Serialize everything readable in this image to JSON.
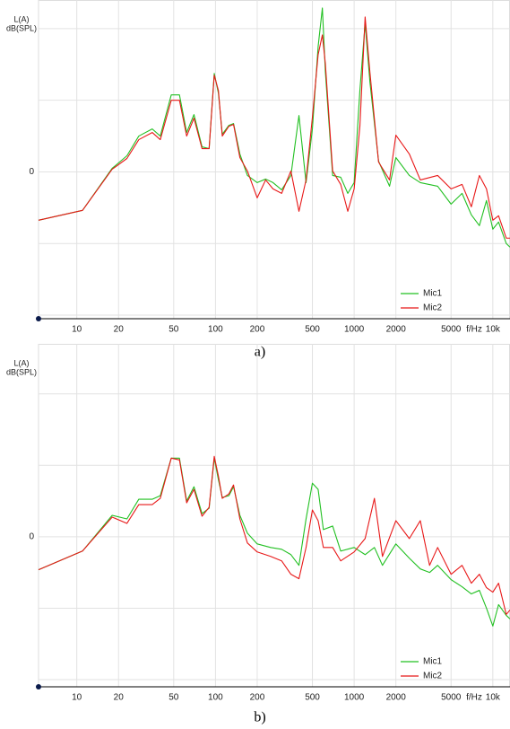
{
  "chart_data": [
    {
      "type": "line",
      "caption": "a)",
      "ylabel": [
        "L(A)",
        "dB(SPL)"
      ],
      "xlabel": "f/Hz",
      "xscale": "log",
      "grid": true,
      "legend": "lower right",
      "xlim": [
        5.3,
        13300
      ],
      "ylim": [
        -41,
        48
      ],
      "xticks": [
        10,
        20,
        50,
        100,
        200,
        500,
        1000,
        2000,
        5000,
        {
          "value": 10000,
          "label": "10k"
        }
      ],
      "yticks": [
        {
          "value": -40,
          "label": null
        },
        {
          "value": -20,
          "label": null
        },
        0,
        {
          "value": 20,
          "label": null
        },
        {
          "value": 40,
          "label": null
        }
      ],
      "x": [
        5.3,
        11,
        18,
        23,
        28,
        35,
        40,
        48,
        55,
        62,
        70,
        80,
        90,
        98,
        105,
        112,
        125,
        135,
        150,
        170,
        200,
        230,
        260,
        300,
        350,
        400,
        450,
        500,
        550,
        590,
        620,
        700,
        800,
        900,
        1000,
        1100,
        1200,
        1300,
        1500,
        1800,
        2000,
        2500,
        3000,
        4000,
        5000,
        6000,
        7000,
        8000,
        9000,
        10000,
        11000,
        12500,
        13300
      ],
      "series": [
        {
          "name": "Mic1",
          "color": "#22c022",
          "values": [
            -13.5,
            -10.75,
            1,
            4.5,
            10,
            12,
            10,
            21.5,
            21.5,
            11,
            16,
            7,
            6.5,
            27.5,
            22,
            10.5,
            13,
            13.5,
            5,
            -1,
            -3,
            -2,
            -3,
            -5,
            -1,
            15.75,
            -3,
            12,
            35,
            45.75,
            28,
            -1,
            -1.5,
            -6,
            -3,
            22.75,
            41.5,
            25,
            3,
            -4,
            4,
            -1,
            -3,
            -4,
            -9,
            -6,
            -12,
            -15,
            -8,
            -16,
            -14,
            -20,
            -21
          ]
        },
        {
          "name": "Mic2",
          "color": "#e81818",
          "values": [
            -13.5,
            -10.75,
            0.75,
            3.75,
            9,
            11,
            9,
            20,
            20,
            10,
            15,
            6.5,
            6.5,
            27,
            22.75,
            10,
            12.75,
            13.25,
            4,
            0.25,
            -7.25,
            -2.25,
            -4.75,
            -6,
            0.25,
            -11,
            -2.25,
            15.25,
            32.75,
            38.25,
            30.25,
            0.25,
            -3.5,
            -11,
            -4.75,
            12.75,
            43.25,
            27.75,
            2.75,
            -2.25,
            10.25,
            5,
            -2.25,
            -1,
            -4.75,
            -3.5,
            -9.75,
            -1,
            -4.75,
            -13.5,
            -12.25,
            -18.5,
            -18.5
          ]
        }
      ]
    },
    {
      "type": "line",
      "caption": "b)",
      "ylabel": [
        "L(A)",
        "dB(SPL)"
      ],
      "xlabel": "f/Hz",
      "xscale": "log",
      "grid": true,
      "legend": "lower right",
      "xlim": [
        5.3,
        13300
      ],
      "ylim": [
        -42,
        54
      ],
      "xticks": [
        10,
        20,
        50,
        100,
        200,
        500,
        1000,
        2000,
        5000,
        {
          "value": 10000,
          "label": "10k"
        }
      ],
      "yticks": [
        {
          "value": -40,
          "label": null
        },
        {
          "value": -20,
          "label": null
        },
        0,
        {
          "value": 20,
          "label": null
        },
        {
          "value": 40,
          "label": null
        }
      ],
      "x": [
        5.3,
        11,
        18,
        23,
        28,
        35,
        40,
        48,
        55,
        62,
        70,
        80,
        90,
        98,
        105,
        112,
        125,
        135,
        150,
        170,
        200,
        250,
        300,
        350,
        400,
        450,
        500,
        550,
        600,
        700,
        800,
        1000,
        1200,
        1400,
        1600,
        2000,
        2500,
        3000,
        3500,
        4000,
        5000,
        6000,
        7000,
        8000,
        9000,
        10000,
        11000,
        12500,
        13300
      ],
      "series": [
        {
          "name": "Mic1",
          "color": "#22c022",
          "values": [
            -9.25,
            -4,
            6,
            5,
            10.5,
            10.5,
            11.5,
            22,
            22,
            10,
            14,
            6.5,
            8,
            22,
            16,
            11,
            11.5,
            14,
            6,
            1,
            -2,
            -3,
            -3.5,
            -5,
            -8,
            5,
            15,
            13.25,
            2,
            3,
            -4,
            -3,
            -5,
            -3,
            -8,
            -2,
            -6,
            -9,
            -10,
            -8,
            -12,
            -14,
            -16,
            -15,
            -20,
            -25,
            -19,
            -22,
            -23
          ]
        },
        {
          "name": "Mic2",
          "color": "#e81818",
          "values": [
            -9.25,
            -4,
            5.5,
            3.75,
            9,
            9,
            10.75,
            22,
            21.5,
            9.5,
            13.25,
            5.75,
            8.25,
            22.5,
            17,
            10.75,
            12,
            14.5,
            5,
            -1.75,
            -4.25,
            -5.5,
            -6.75,
            -10.5,
            -11.75,
            -3,
            7.5,
            4.5,
            -3,
            -3,
            -6.75,
            -4.25,
            -0.5,
            10.75,
            -5.5,
            4.5,
            -0.5,
            4.5,
            -8,
            -3,
            -10.5,
            -8,
            -13,
            -10.5,
            -14.25,
            -15.5,
            -13,
            -21.75,
            -20.5
          ]
        }
      ]
    }
  ]
}
